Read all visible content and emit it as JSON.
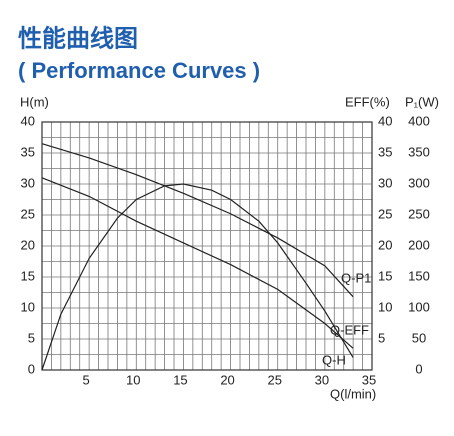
{
  "chart_data": {
    "type": "line",
    "title": "性能曲线图",
    "subtitle": "( Performance Curves )",
    "ylabel": "H(m)",
    "y2label": "EFF(%)",
    "y3label": "P₁(W)",
    "xlabel": "Q(l/min)",
    "xlim": [
      0,
      35
    ],
    "xticks": [
      5,
      10,
      15,
      20,
      25,
      30,
      35
    ],
    "ylim": [
      0,
      40
    ],
    "yticks": [
      0,
      5,
      10,
      15,
      20,
      25,
      30,
      35,
      40
    ],
    "y2lim": [
      0,
      40
    ],
    "y2ticks": [
      5,
      10,
      15,
      20,
      25,
      30,
      35,
      40
    ],
    "y3lim": [
      0,
      400
    ],
    "y3ticks": [
      0,
      50,
      100,
      150,
      200,
      250,
      300,
      350,
      400
    ],
    "xgrid": [
      1,
      2,
      3,
      4,
      5,
      6,
      7,
      8,
      9,
      10,
      11,
      12,
      13,
      14,
      15,
      16,
      17,
      18,
      19,
      20,
      21,
      22,
      23,
      24,
      25,
      26,
      27,
      28,
      29,
      30,
      31,
      32,
      33,
      34,
      35
    ],
    "ygrid": [
      2.5,
      5,
      7.5,
      10,
      12.5,
      15,
      17.5,
      20,
      22.5,
      25,
      27.5,
      30,
      32.5,
      35,
      37.5,
      40
    ],
    "series": [
      {
        "name": "Q-H",
        "color": "#222222",
        "axis": "y",
        "x": [
          0,
          5,
          10,
          15,
          20,
          25,
          30,
          33
        ],
        "values": [
          31,
          28,
          24,
          20.5,
          17,
          13,
          7.5,
          3.5
        ]
      },
      {
        "name": "Q-EFF",
        "color": "#222222",
        "axis": "y2",
        "x": [
          0,
          2,
          5,
          8,
          10,
          13,
          15,
          18,
          20,
          23,
          25,
          28,
          30,
          33
        ],
        "values": [
          0,
          9,
          18,
          24.5,
          27.5,
          29.7,
          30,
          29,
          27.5,
          24,
          20.5,
          14,
          9.5,
          2
        ]
      },
      {
        "name": "Q-P1",
        "color": "#222222",
        "axis": "y3",
        "x": [
          0,
          5,
          10,
          15,
          20,
          25,
          30,
          33
        ],
        "values": [
          365,
          342,
          315,
          285,
          252,
          213,
          168,
          118
        ]
      }
    ]
  }
}
